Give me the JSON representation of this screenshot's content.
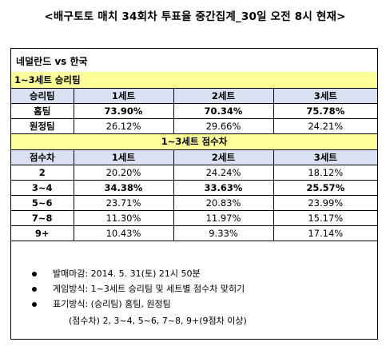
{
  "title": "<배구토토 매치 34회차 투표율 중간집계_30일 오전 8시 현재>",
  "match": "네덜란드 vs 한국",
  "section1": {
    "title": "1~3세트 승리팀",
    "headers": [
      "승리팀",
      "1세트",
      "2세트",
      "3세트"
    ],
    "rows": [
      {
        "label": "홈팀",
        "values": [
          "73.90%",
          "70.34%",
          "75.78%"
        ],
        "bold": true
      },
      {
        "label": "원정팀",
        "values": [
          "26.12%",
          "29.66%",
          "24.21%"
        ],
        "bold": false
      }
    ]
  },
  "section2": {
    "title": "1~3세트 점수차",
    "headers": [
      "점수차",
      "1세트",
      "2세트",
      "3세트"
    ],
    "rows": [
      {
        "label": "2",
        "values": [
          "20.20%",
          "24.24%",
          "18.12%"
        ],
        "bold": false
      },
      {
        "label": "3~4",
        "values": [
          "34.38%",
          "33.63%",
          "25.57%"
        ],
        "bold": true
      },
      {
        "label": "5~6",
        "values": [
          "23.71%",
          "20.83%",
          "23.99%"
        ],
        "bold": false
      },
      {
        "label": "7~8",
        "values": [
          "11.30%",
          "11.97%",
          "15.17%"
        ],
        "bold": false
      },
      {
        "label": "9+",
        "values": [
          "10.43%",
          "9.33%",
          "17.14%"
        ],
        "bold": false
      }
    ]
  },
  "notes": [
    "발매마감: 2014. 5. 31(토) 21시 50분",
    "게임방식: 1~3세트 승리팀 및 세트별 점수차 맞히기",
    "표기방식: (승리팀) 홈팀, 원정팀",
    "(점수차) 2, 3~4, 5~6, 7~8, 9+(9점차 이상)"
  ]
}
